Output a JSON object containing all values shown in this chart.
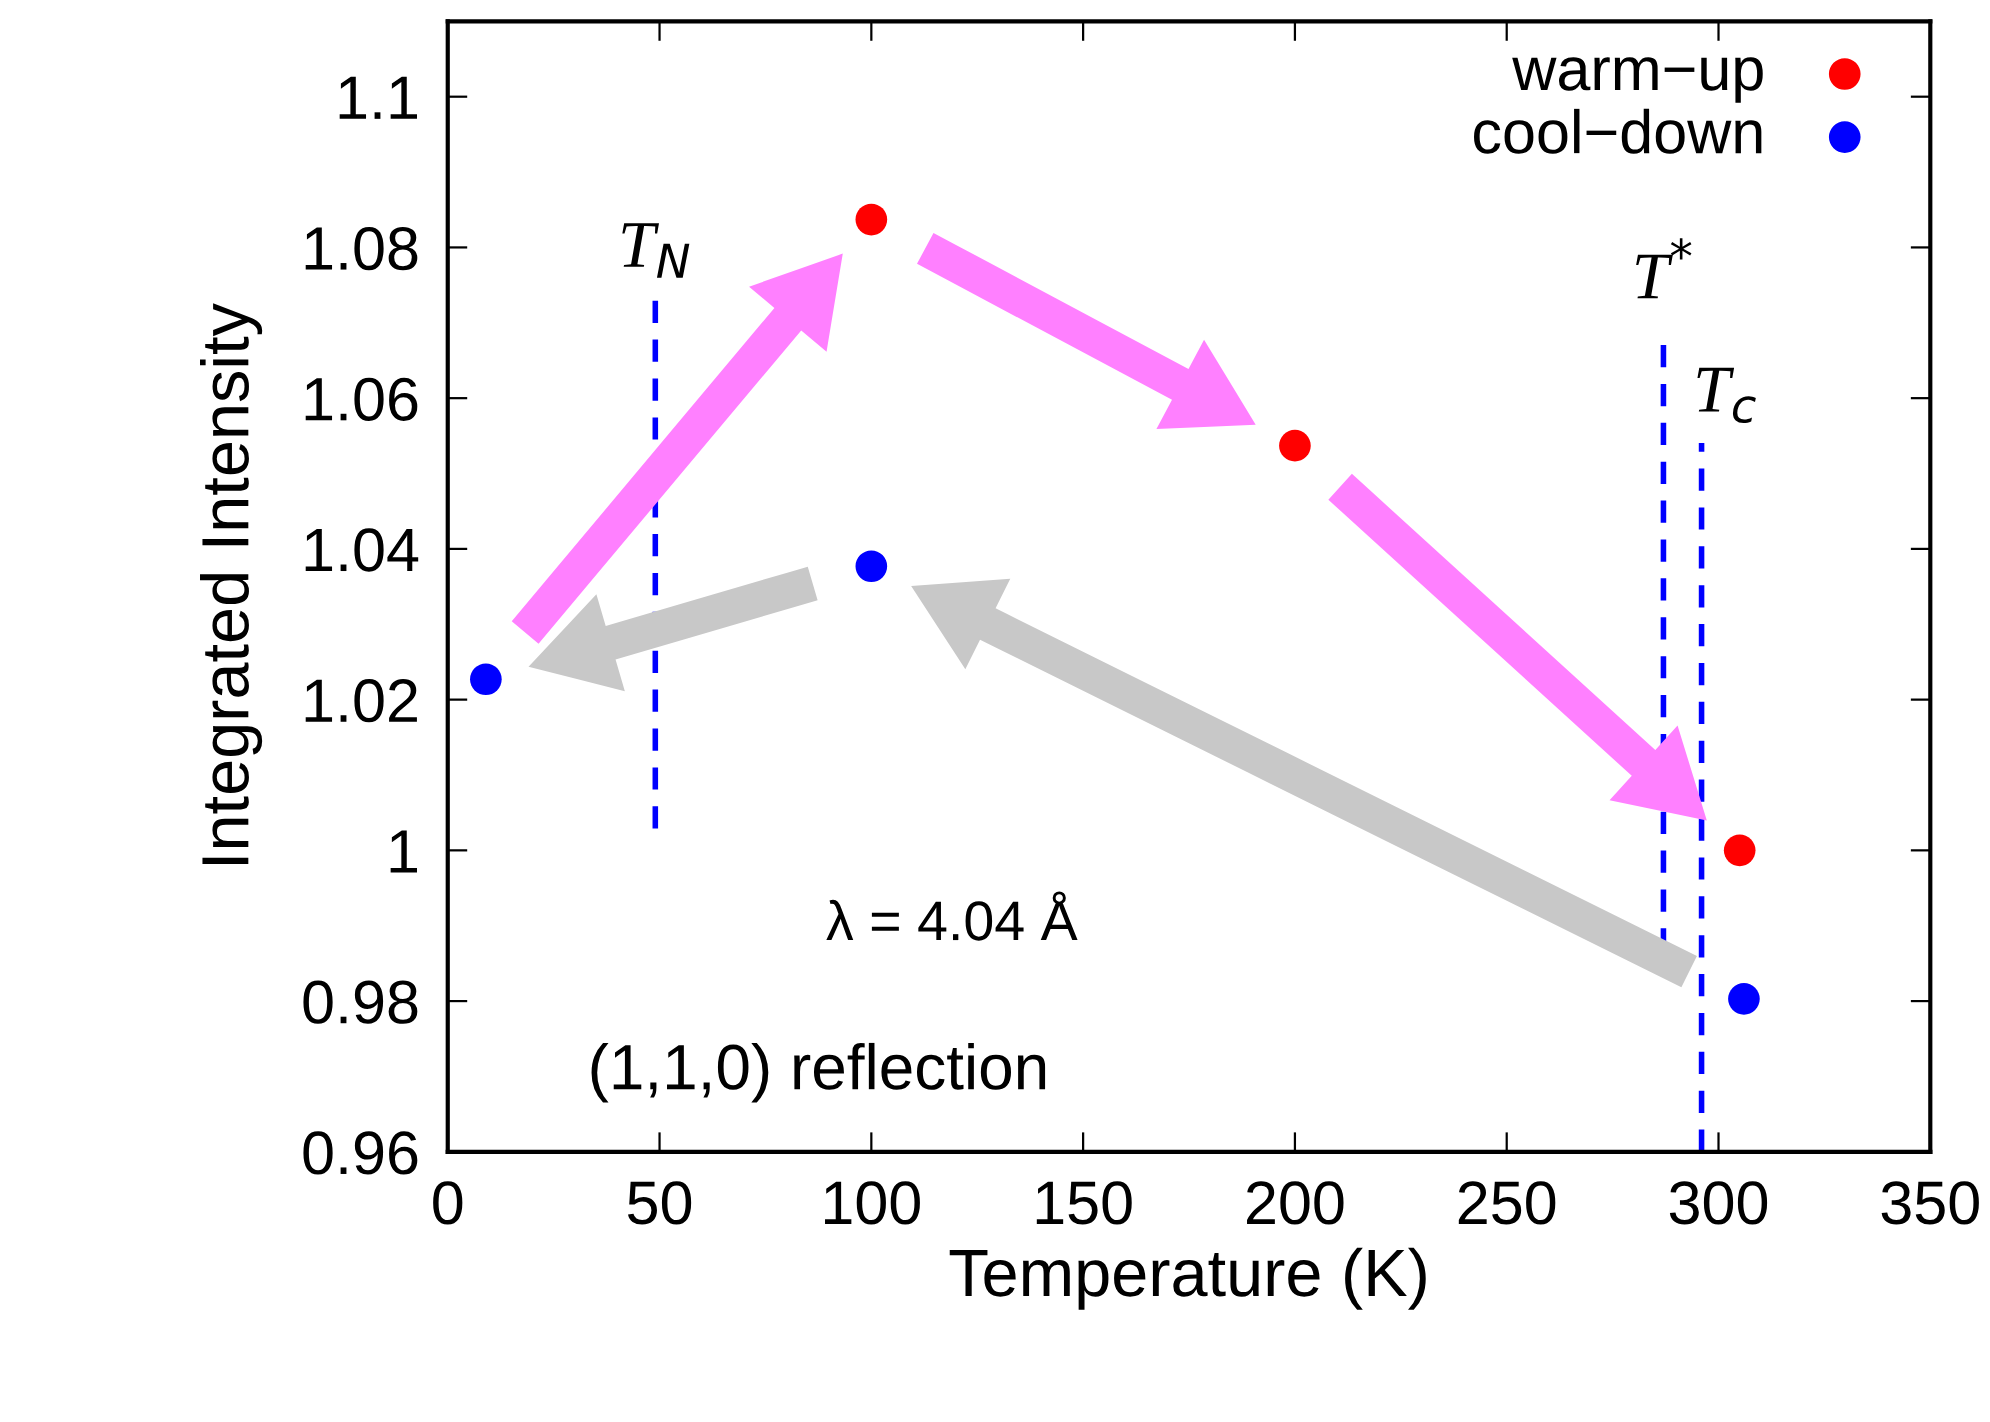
{
  "chart_data": {
    "type": "scatter",
    "xlabel": "Temperature (K)",
    "ylabel": "Integrated Intensity",
    "series": [
      {
        "name": "warm−up",
        "color": "#ff0000",
        "x": [
          100,
          200,
          305
        ],
        "values": [
          1.0837,
          1.0537,
          1.0
        ]
      },
      {
        "name": "cool−down",
        "color": "#0000ff",
        "x": [
          9,
          100,
          306
        ],
        "values": [
          1.0227,
          1.0377,
          0.9803
        ]
      }
    ],
    "xlim": [
      0,
      350
    ],
    "xticks": [
      0,
      50,
      100,
      150,
      200,
      250,
      300,
      350
    ],
    "ylim": [
      0.96,
      1.11
    ],
    "yticks": [
      0.96,
      0.98,
      1,
      1.02,
      1.04,
      1.06,
      1.08,
      1.1
    ],
    "ref_lines": [
      {
        "axis": "x",
        "value": 49,
        "label": "T$_{N}$",
        "color": "#0000ff",
        "line_style": "dashed"
      },
      {
        "axis": "x",
        "value": 287,
        "label": "T$^{*}$",
        "color": "#0000ff",
        "line_style": "dashed"
      },
      {
        "axis": "x",
        "value": 296,
        "label": "T$_{c}$",
        "color": "#0000ff",
        "line_style": "dashed"
      }
    ],
    "annotations": [
      "λ = 4.04 Å",
      "(1,1,0) reflection"
    ],
    "legend": "top right",
    "marker": "circle",
    "grid": false
  }
}
